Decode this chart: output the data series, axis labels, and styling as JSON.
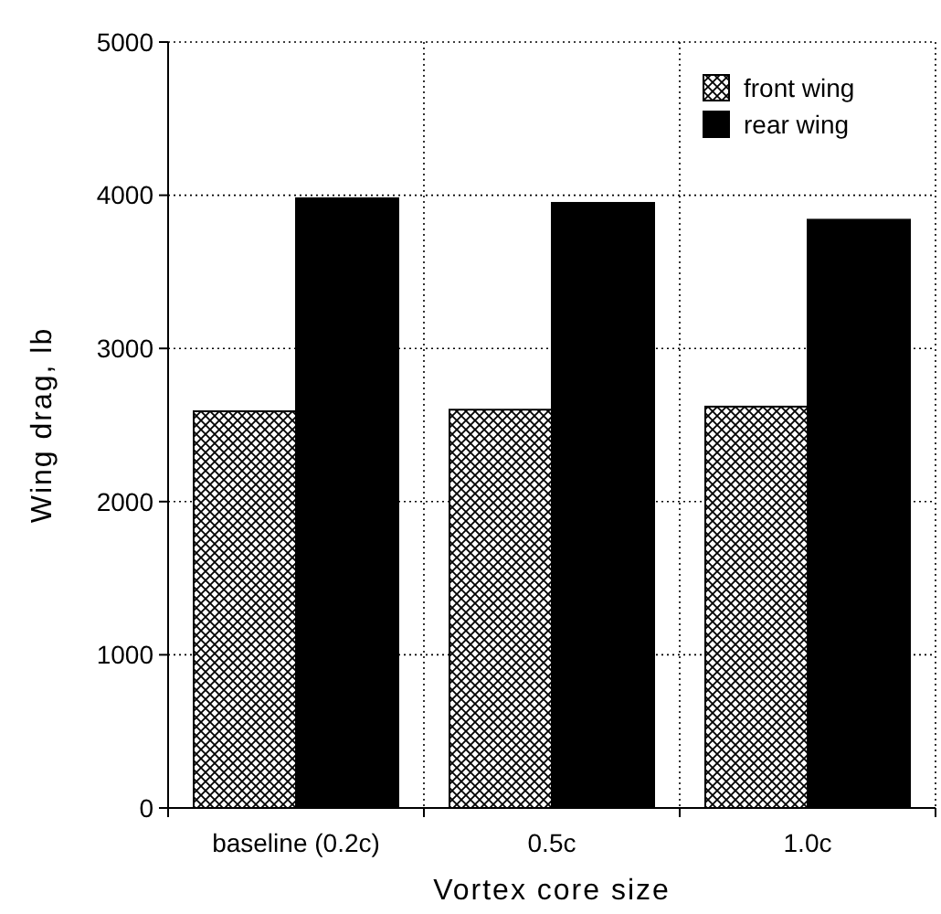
{
  "chart_data": {
    "type": "bar",
    "xlabel": "Vortex core size",
    "ylabel": "Wing drag, lb",
    "categories": [
      "baseline (0.2c)",
      "0.5c",
      "1.0c"
    ],
    "series": [
      {
        "name": "front wing",
        "color": "#000000",
        "values": [
          2590,
          2600,
          2620
        ]
      },
      {
        "name": "rear wing",
        "color": "#000000",
        "values": [
          3980,
          3950,
          3840
        ]
      }
    ],
    "ylim": [
      0,
      5000
    ],
    "yticks": [
      0,
      1000,
      2000,
      3000,
      4000,
      5000
    ],
    "grid": true,
    "legend": "top right"
  }
}
